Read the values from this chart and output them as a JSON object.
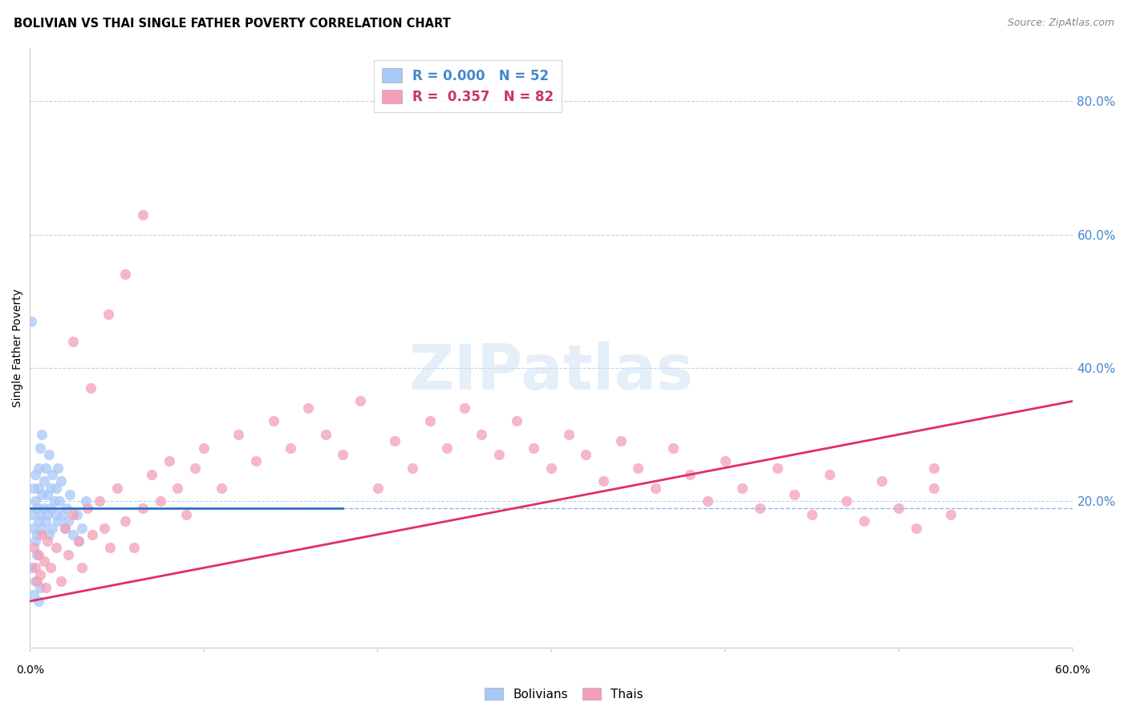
{
  "title": "BOLIVIAN VS THAI SINGLE FATHER POVERTY CORRELATION CHART",
  "source": "Source: ZipAtlas.com",
  "ylabel": "Single Father Poverty",
  "ytick_values": [
    0.2,
    0.4,
    0.6,
    0.8
  ],
  "xlim": [
    0.0,
    0.6
  ],
  "ylim": [
    -0.02,
    0.88
  ],
  "bolivian_color": "#a8c8f8",
  "thai_color": "#f4a0b8",
  "regression_blue_color": "#3070c0",
  "regression_pink_color": "#e03060",
  "watermark_text": "ZIPatlas",
  "bolivian_R": 0.0,
  "bolivian_N": 52,
  "thai_R": 0.357,
  "thai_N": 82,
  "bolivian_x": [
    0.001,
    0.002,
    0.002,
    0.003,
    0.003,
    0.003,
    0.004,
    0.004,
    0.005,
    0.005,
    0.005,
    0.006,
    0.006,
    0.007,
    0.007,
    0.008,
    0.008,
    0.009,
    0.009,
    0.01,
    0.01,
    0.011,
    0.011,
    0.012,
    0.012,
    0.013,
    0.013,
    0.014,
    0.015,
    0.015,
    0.016,
    0.016,
    0.017,
    0.018,
    0.019,
    0.02,
    0.021,
    0.022,
    0.023,
    0.025,
    0.027,
    0.028,
    0.03,
    0.032,
    0.001,
    0.002,
    0.003,
    0.004,
    0.005,
    0.006,
    0.001,
    0.007
  ],
  "bolivian_y": [
    0.18,
    0.22,
    0.16,
    0.2,
    0.14,
    0.24,
    0.19,
    0.15,
    0.22,
    0.17,
    0.25,
    0.18,
    0.28,
    0.21,
    0.16,
    0.23,
    0.19,
    0.25,
    0.17,
    0.21,
    0.18,
    0.27,
    0.15,
    0.22,
    0.19,
    0.24,
    0.16,
    0.2,
    0.22,
    0.18,
    0.25,
    0.17,
    0.2,
    0.23,
    0.18,
    0.16,
    0.19,
    0.17,
    0.21,
    0.15,
    0.18,
    0.14,
    0.16,
    0.2,
    0.1,
    0.06,
    0.08,
    0.12,
    0.05,
    0.07,
    0.47,
    0.3
  ],
  "thai_x": [
    0.002,
    0.003,
    0.004,
    0.005,
    0.006,
    0.007,
    0.008,
    0.009,
    0.01,
    0.012,
    0.015,
    0.018,
    0.02,
    0.022,
    0.025,
    0.028,
    0.03,
    0.033,
    0.036,
    0.04,
    0.043,
    0.046,
    0.05,
    0.055,
    0.06,
    0.065,
    0.07,
    0.075,
    0.08,
    0.085,
    0.09,
    0.095,
    0.1,
    0.11,
    0.12,
    0.13,
    0.14,
    0.15,
    0.16,
    0.17,
    0.18,
    0.19,
    0.2,
    0.21,
    0.22,
    0.23,
    0.24,
    0.25,
    0.26,
    0.27,
    0.28,
    0.29,
    0.3,
    0.31,
    0.32,
    0.33,
    0.34,
    0.35,
    0.36,
    0.37,
    0.38,
    0.39,
    0.4,
    0.41,
    0.42,
    0.43,
    0.44,
    0.45,
    0.46,
    0.47,
    0.48,
    0.49,
    0.5,
    0.51,
    0.52,
    0.53,
    0.025,
    0.035,
    0.045,
    0.055,
    0.065,
    0.52
  ],
  "thai_y": [
    0.13,
    0.1,
    0.08,
    0.12,
    0.09,
    0.15,
    0.11,
    0.07,
    0.14,
    0.1,
    0.13,
    0.08,
    0.16,
    0.12,
    0.18,
    0.14,
    0.1,
    0.19,
    0.15,
    0.2,
    0.16,
    0.13,
    0.22,
    0.17,
    0.13,
    0.19,
    0.24,
    0.2,
    0.26,
    0.22,
    0.18,
    0.25,
    0.28,
    0.22,
    0.3,
    0.26,
    0.32,
    0.28,
    0.34,
    0.3,
    0.27,
    0.35,
    0.22,
    0.29,
    0.25,
    0.32,
    0.28,
    0.34,
    0.3,
    0.27,
    0.32,
    0.28,
    0.25,
    0.3,
    0.27,
    0.23,
    0.29,
    0.25,
    0.22,
    0.28,
    0.24,
    0.2,
    0.26,
    0.22,
    0.19,
    0.25,
    0.21,
    0.18,
    0.24,
    0.2,
    0.17,
    0.23,
    0.19,
    0.16,
    0.22,
    0.18,
    0.44,
    0.37,
    0.48,
    0.54,
    0.63,
    0.25
  ]
}
